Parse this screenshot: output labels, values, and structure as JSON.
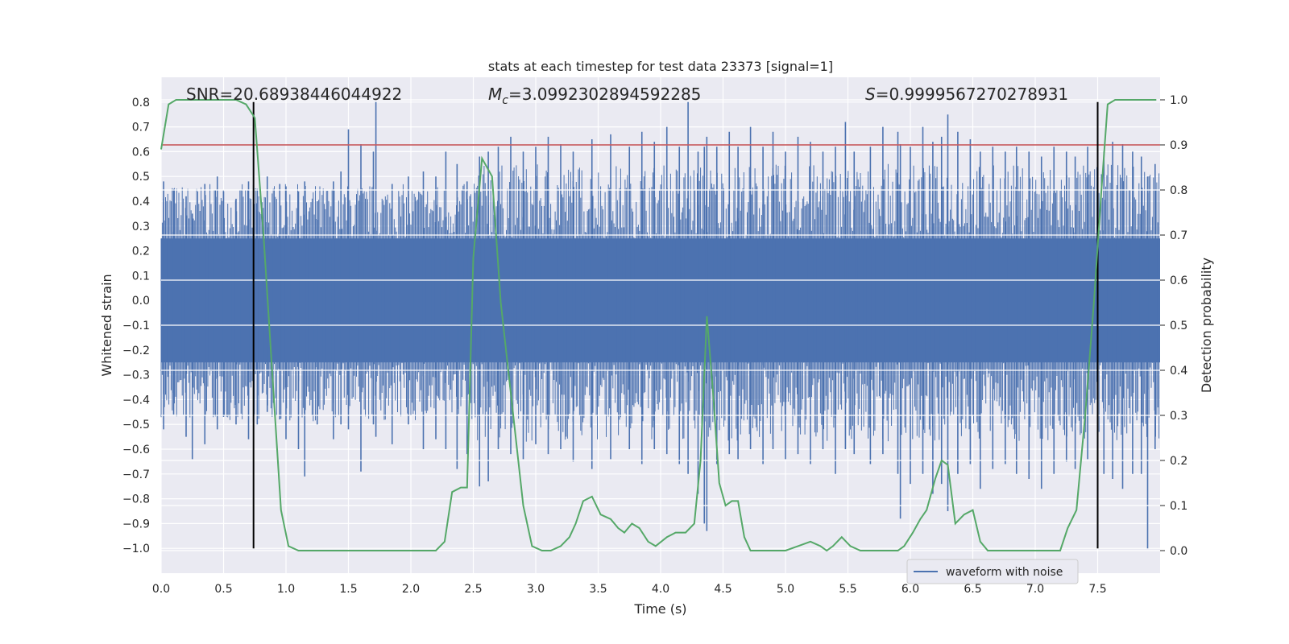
{
  "chart_data": {
    "type": "line",
    "title": "stats at each timestep for test data 23373 [signal=1]",
    "xlabel": "Time (s)",
    "ylabel": "Whitened strain",
    "ylabel_right": "Detection probability",
    "xlim": [
      0,
      8
    ],
    "ylim": [
      -1.1,
      0.9
    ],
    "ylim_right": [
      -0.05,
      1.05
    ],
    "x_ticks": [
      "0.0",
      "0.5",
      "1.0",
      "1.5",
      "2.0",
      "2.5",
      "3.0",
      "3.5",
      "4.0",
      "4.5",
      "5.0",
      "5.5",
      "6.0",
      "6.5",
      "7.0",
      "7.5"
    ],
    "y_ticks": [
      "0.8",
      "0.7",
      "0.6",
      "0.5",
      "0.4",
      "0.3",
      "0.2",
      "0.1",
      "0.0",
      "−0.1",
      "−0.2",
      "−0.3",
      "−0.4",
      "−0.5",
      "−0.6",
      "−0.7",
      "−0.8",
      "−0.9",
      "−1.0"
    ],
    "y_ticks_right": [
      "1.0",
      "0.9",
      "0.8",
      "0.7",
      "0.6",
      "0.5",
      "0.4",
      "0.3",
      "0.2",
      "0.1",
      "0.0"
    ],
    "grid": true,
    "legend": {
      "position": "lower-right",
      "entries": [
        {
          "label": "waveform with noise",
          "color": "#4c72b0"
        }
      ]
    },
    "annotations": {
      "snr_label": "SNR=20.68938446044922",
      "mc_symbol": "M",
      "mc_sub": "c",
      "mc_value": "=3.0992302894592285",
      "s_symbol": "S",
      "s_value": "=0.9999567270278931"
    },
    "threshold": {
      "y_right": 0.9,
      "color": "#c44e52"
    },
    "vertical_markers": {
      "x": [
        0.74,
        7.5
      ],
      "color": "#000000"
    },
    "waveform": {
      "name": "waveform with noise",
      "color": "#4c72b0",
      "band": [
        -0.25,
        0.25
      ],
      "peaks": [
        [
          0.02,
          0.48,
          -0.52
        ],
        [
          0.1,
          0.45,
          -0.46
        ],
        [
          0.2,
          0.42,
          -0.55
        ],
        [
          0.25,
          0.35,
          -0.64
        ],
        [
          0.35,
          0.47,
          -0.58
        ],
        [
          0.45,
          0.5,
          -0.52
        ],
        [
          0.5,
          0.44,
          -0.47
        ],
        [
          0.6,
          0.41,
          -0.5
        ],
        [
          0.7,
          0.48,
          -0.56
        ],
        [
          0.77,
          0.45,
          -0.5
        ],
        [
          0.85,
          0.5,
          -0.45
        ],
        [
          0.95,
          0.47,
          -0.48
        ],
        [
          1.0,
          0.46,
          -0.56
        ],
        [
          1.1,
          0.44,
          -0.6
        ],
        [
          1.15,
          0.48,
          -0.71
        ],
        [
          1.25,
          0.4,
          -0.5
        ],
        [
          1.38,
          0.48,
          -0.56
        ],
        [
          1.44,
          0.52,
          -0.5
        ],
        [
          1.5,
          0.69,
          -0.52
        ],
        [
          1.6,
          0.63,
          -0.69
        ],
        [
          1.7,
          0.6,
          -0.5
        ],
        [
          1.72,
          0.8,
          -0.55
        ],
        [
          1.85,
          0.47,
          -0.58
        ],
        [
          1.98,
          0.5,
          -0.5
        ],
        [
          2.1,
          0.52,
          -0.6
        ],
        [
          2.2,
          0.5,
          -0.56
        ],
        [
          2.28,
          0.6,
          -0.6
        ],
        [
          2.37,
          0.55,
          -0.68
        ],
        [
          2.45,
          0.48,
          -0.62
        ],
        [
          2.55,
          0.58,
          -0.75
        ],
        [
          2.62,
          0.6,
          -0.73
        ],
        [
          2.7,
          0.62,
          -0.6
        ],
        [
          2.8,
          0.66,
          -0.62
        ],
        [
          2.9,
          0.6,
          -0.64
        ],
        [
          3.0,
          0.62,
          -0.58
        ],
        [
          3.1,
          0.66,
          -0.62
        ],
        [
          3.2,
          0.63,
          -0.6
        ],
        [
          3.3,
          0.6,
          -0.65
        ],
        [
          3.45,
          0.65,
          -0.68
        ],
        [
          3.6,
          0.67,
          -0.64
        ],
        [
          3.75,
          0.62,
          -0.6
        ],
        [
          3.85,
          0.68,
          -0.66
        ],
        [
          3.95,
          0.64,
          -0.6
        ],
        [
          4.05,
          0.7,
          -0.62
        ],
        [
          4.15,
          0.62,
          -0.66
        ],
        [
          4.22,
          0.8,
          -0.7
        ],
        [
          4.3,
          0.6,
          -0.78
        ],
        [
          4.35,
          0.62,
          -0.9
        ],
        [
          4.37,
          0.66,
          -0.93
        ],
        [
          4.45,
          0.62,
          -0.66
        ],
        [
          4.55,
          0.68,
          -0.62
        ],
        [
          4.62,
          0.62,
          -0.64
        ],
        [
          4.72,
          0.7,
          -0.6
        ],
        [
          4.82,
          0.62,
          -0.66
        ],
        [
          4.9,
          0.68,
          -0.6
        ],
        [
          5.0,
          0.6,
          -0.64
        ],
        [
          5.1,
          0.66,
          -0.62
        ],
        [
          5.2,
          0.64,
          -0.66
        ],
        [
          5.3,
          0.6,
          -0.6
        ],
        [
          5.4,
          0.62,
          -0.7
        ],
        [
          5.48,
          0.72,
          -0.6
        ],
        [
          5.55,
          0.6,
          -0.62
        ],
        [
          5.68,
          0.62,
          -0.66
        ],
        [
          5.78,
          0.7,
          -0.62
        ],
        [
          5.9,
          0.68,
          -0.7
        ],
        [
          5.92,
          0.63,
          -0.88
        ],
        [
          6.0,
          0.62,
          -0.74
        ],
        [
          6.1,
          0.7,
          -0.7
        ],
        [
          6.18,
          0.64,
          -0.78
        ],
        [
          6.25,
          0.66,
          -0.74
        ],
        [
          6.3,
          0.75,
          -0.85
        ],
        [
          6.38,
          0.68,
          -0.7
        ],
        [
          6.48,
          0.65,
          -0.66
        ],
        [
          6.56,
          0.6,
          -0.76
        ],
        [
          6.66,
          0.62,
          -0.68
        ],
        [
          6.76,
          0.6,
          -0.66
        ],
        [
          6.85,
          0.62,
          -0.7
        ],
        [
          6.95,
          0.6,
          -0.72
        ],
        [
          7.05,
          0.58,
          -0.76
        ],
        [
          7.15,
          0.62,
          -0.7
        ],
        [
          7.25,
          0.6,
          -0.65
        ],
        [
          7.32,
          0.58,
          -0.68
        ],
        [
          7.42,
          0.62,
          -0.64
        ],
        [
          7.55,
          0.6,
          -0.7
        ],
        [
          7.62,
          0.64,
          -0.72
        ],
        [
          7.7,
          0.63,
          -0.76
        ],
        [
          7.78,
          0.6,
          -0.7
        ],
        [
          7.85,
          0.58,
          -0.7
        ],
        [
          7.9,
          0.5,
          -1.0
        ],
        [
          7.96,
          0.55,
          -0.6
        ]
      ]
    },
    "probability": {
      "name": "detection probability",
      "color": "#55a868",
      "x": [
        0.0,
        0.06,
        0.12,
        0.2,
        0.3,
        0.45,
        0.6,
        0.68,
        0.75,
        0.82,
        0.9,
        0.96,
        1.02,
        1.1,
        1.25,
        1.4,
        1.5,
        1.6,
        1.8,
        2.0,
        2.12,
        2.2,
        2.27,
        2.33,
        2.4,
        2.45,
        2.5,
        2.57,
        2.65,
        2.72,
        2.8,
        2.9,
        2.97,
        3.05,
        3.12,
        3.2,
        3.27,
        3.32,
        3.38,
        3.45,
        3.52,
        3.6,
        3.66,
        3.71,
        3.77,
        3.83,
        3.9,
        3.96,
        4.05,
        4.12,
        4.2,
        4.27,
        4.32,
        4.37,
        4.42,
        4.47,
        4.52,
        4.57,
        4.62,
        4.67,
        4.72,
        4.8,
        4.9,
        5.0,
        5.1,
        5.2,
        5.28,
        5.33,
        5.38,
        5.45,
        5.52,
        5.6,
        5.7,
        5.8,
        5.9,
        5.95,
        6.02,
        6.08,
        6.13,
        6.2,
        6.25,
        6.3,
        6.36,
        6.43,
        6.5,
        6.56,
        6.62,
        6.7,
        6.8,
        6.9,
        7.0,
        7.1,
        7.2,
        7.26,
        7.33,
        7.4,
        7.47,
        7.53,
        7.58,
        7.64,
        7.7,
        7.8,
        7.97
      ],
      "values": [
        0.89,
        0.99,
        1.0,
        1.0,
        1.0,
        1.0,
        1.0,
        0.99,
        0.96,
        0.7,
        0.35,
        0.09,
        0.01,
        0.0,
        0.0,
        0.0,
        0.0,
        0.0,
        0.0,
        0.0,
        0.0,
        0.0,
        0.02,
        0.13,
        0.14,
        0.14,
        0.65,
        0.87,
        0.83,
        0.55,
        0.35,
        0.1,
        0.01,
        0.0,
        0.0,
        0.01,
        0.03,
        0.06,
        0.11,
        0.12,
        0.08,
        0.07,
        0.05,
        0.04,
        0.06,
        0.05,
        0.02,
        0.01,
        0.03,
        0.04,
        0.04,
        0.06,
        0.2,
        0.52,
        0.35,
        0.15,
        0.1,
        0.11,
        0.11,
        0.03,
        0.0,
        0.0,
        0.0,
        0.0,
        0.01,
        0.02,
        0.01,
        0.0,
        0.01,
        0.03,
        0.01,
        0.0,
        0.0,
        0.0,
        0.0,
        0.01,
        0.04,
        0.07,
        0.09,
        0.16,
        0.2,
        0.19,
        0.06,
        0.08,
        0.09,
        0.02,
        0.0,
        0.0,
        0.0,
        0.0,
        0.0,
        0.0,
        0.0,
        0.05,
        0.09,
        0.3,
        0.55,
        0.8,
        0.99,
        1.0,
        1.0,
        1.0,
        1.0
      ]
    }
  }
}
